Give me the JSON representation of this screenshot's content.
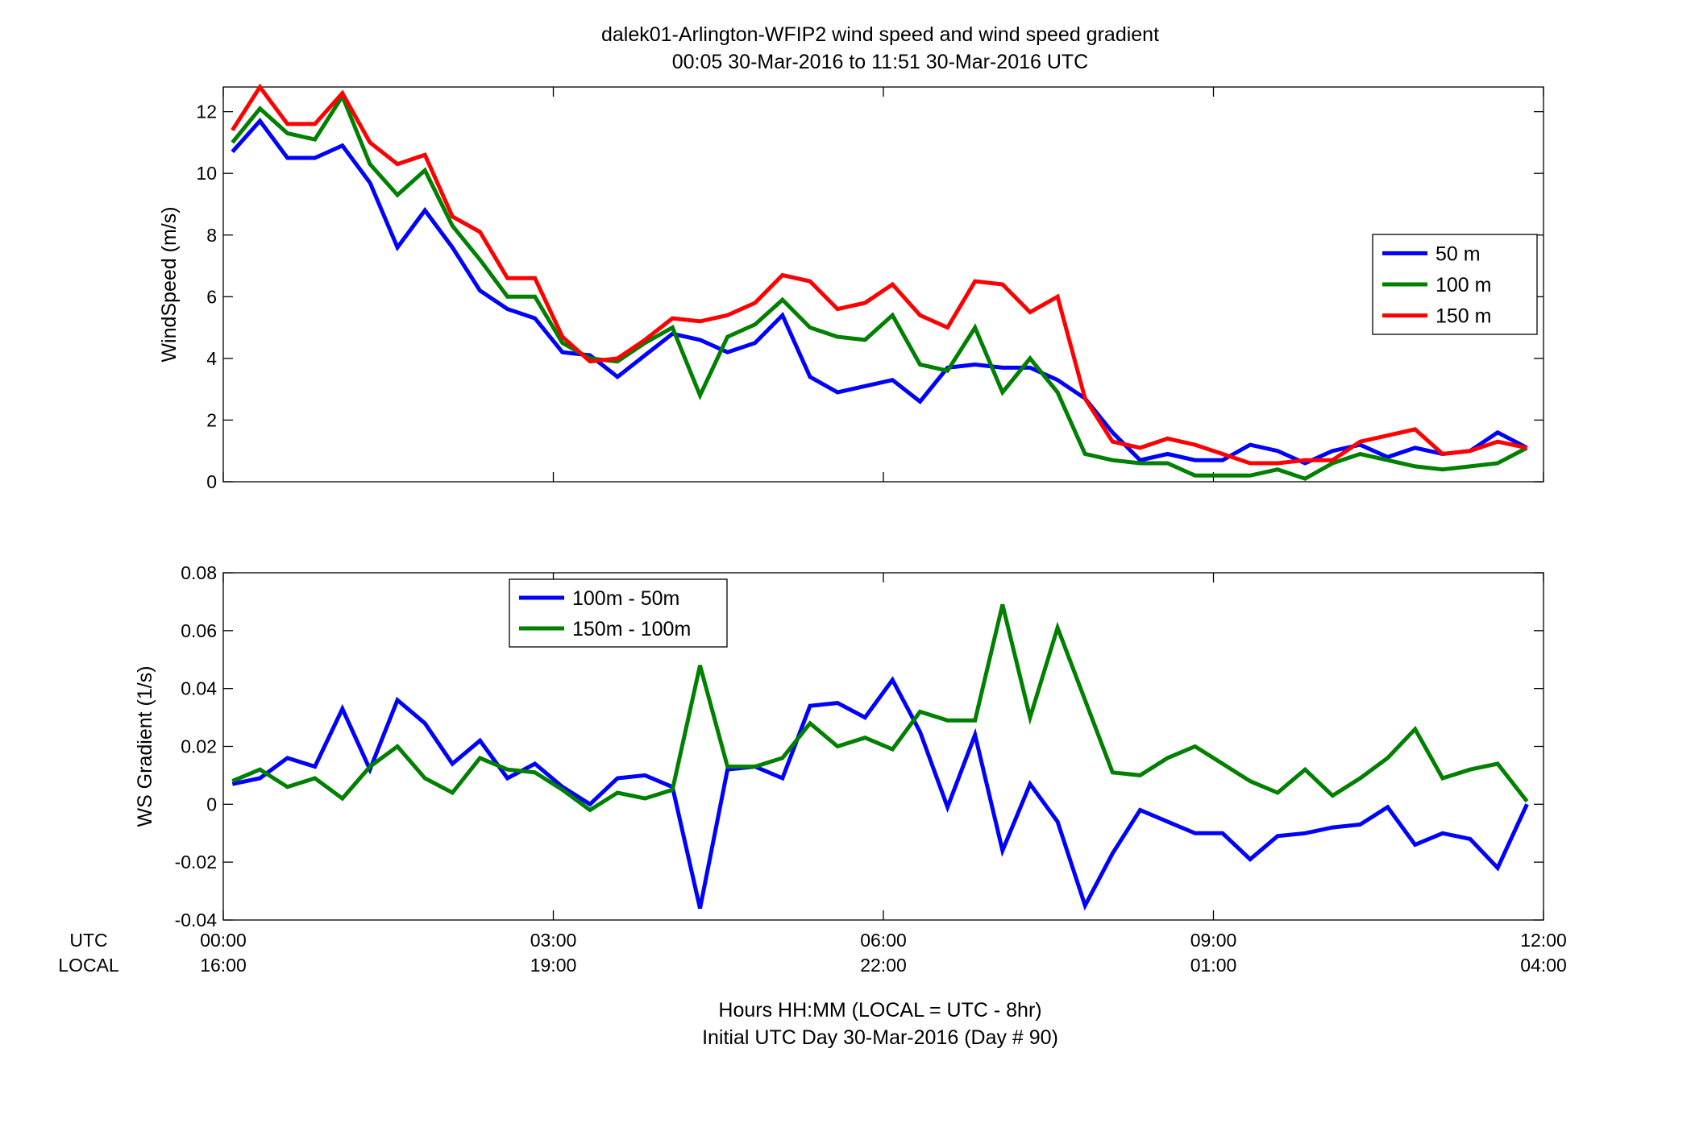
{
  "figure": {
    "title_line1": "dalek01-Arlington-WFIP2  wind speed and wind speed gradient",
    "title_line2": "00:05 30-Mar-2016 to 11:51 30-Mar-2016  UTC",
    "xlabel_line1": "Hours HH:MM  (LOCAL = UTC - 8hr)",
    "xlabel_line2": "Initial UTC Day 30-Mar-2016 (Day # 90)",
    "row_label_utc": "UTC",
    "row_label_local": "LOCAL"
  },
  "chart_data": [
    {
      "type": "line",
      "title": "",
      "xlabel": "",
      "ylabel": "WindSpeed (m/s)",
      "xlim_hours": [
        0,
        12
      ],
      "ylim": [
        0,
        12.8
      ],
      "yticks": [
        0,
        2,
        4,
        6,
        8,
        10,
        12
      ],
      "ytick_labels": [
        "0",
        "2",
        "4",
        "6",
        "8",
        "10",
        "12"
      ],
      "xticks_hours": [
        0,
        3,
        6,
        9,
        12
      ],
      "xtick_labels_utc": [
        "00:00",
        "03:00",
        "06:00",
        "09:00",
        "12:00"
      ],
      "xtick_labels_local": [
        "16:00",
        "19:00",
        "22:00",
        "01:00",
        "04:00"
      ],
      "grid": false,
      "legend_position": "right",
      "x_hours": [
        0.083,
        0.333,
        0.583,
        0.833,
        1.083,
        1.333,
        1.583,
        1.833,
        2.083,
        2.333,
        2.583,
        2.833,
        3.083,
        3.333,
        3.583,
        3.833,
        4.083,
        4.333,
        4.583,
        4.833,
        5.083,
        5.333,
        5.583,
        5.833,
        6.083,
        6.333,
        6.583,
        6.833,
        7.083,
        7.333,
        7.583,
        7.833,
        8.083,
        8.333,
        8.583,
        8.833,
        9.083,
        9.333,
        9.583,
        9.833,
        10.083,
        10.333,
        10.583,
        10.833,
        11.083,
        11.333,
        11.583,
        11.85
      ],
      "series": [
        {
          "name": "50 m",
          "color": "#0000ff",
          "values": [
            10.7,
            11.7,
            10.5,
            10.5,
            10.9,
            9.7,
            7.6,
            8.8,
            7.6,
            6.2,
            5.6,
            5.3,
            4.2,
            4.1,
            3.4,
            4.1,
            4.8,
            4.6,
            4.2,
            4.5,
            5.4,
            3.4,
            2.9,
            3.1,
            3.3,
            2.6,
            3.7,
            3.8,
            3.7,
            3.7,
            3.3,
            2.7,
            1.6,
            0.7,
            0.9,
            0.7,
            0.7,
            1.2,
            1.0,
            0.6,
            1.0,
            1.2,
            0.8,
            1.1,
            0.9,
            1.0,
            1.6,
            1.1
          ]
        },
        {
          "name": "100 m",
          "color": "#008000",
          "values": [
            11.0,
            12.1,
            11.3,
            11.1,
            12.5,
            10.3,
            9.3,
            10.1,
            8.3,
            7.2,
            6.0,
            6.0,
            4.5,
            4.0,
            3.9,
            4.5,
            5.0,
            2.8,
            4.7,
            5.1,
            5.9,
            5.0,
            4.7,
            4.6,
            5.4,
            3.8,
            3.6,
            5.0,
            2.9,
            4.0,
            2.9,
            0.9,
            0.7,
            0.6,
            0.6,
            0.2,
            0.2,
            0.2,
            0.4,
            0.1,
            0.6,
            0.9,
            0.7,
            0.5,
            0.4,
            0.5,
            0.6,
            1.1
          ]
        },
        {
          "name": "150 m",
          "color": "#ff0000",
          "values": [
            11.4,
            12.8,
            11.6,
            11.6,
            12.6,
            11.0,
            10.3,
            10.6,
            8.6,
            8.1,
            6.6,
            6.6,
            4.7,
            3.9,
            4.0,
            4.6,
            5.3,
            5.2,
            5.4,
            5.8,
            6.7,
            6.5,
            5.6,
            5.8,
            6.4,
            5.4,
            5.0,
            6.5,
            6.4,
            5.5,
            6.0,
            2.7,
            1.3,
            1.1,
            1.4,
            1.2,
            0.9,
            0.6,
            0.6,
            0.7,
            0.7,
            1.3,
            1.5,
            1.7,
            0.9,
            1.0,
            1.3,
            1.1
          ]
        }
      ]
    },
    {
      "type": "line",
      "title": "",
      "xlabel": "",
      "ylabel": "WS Gradient (1/s)",
      "xlim_hours": [
        0,
        12
      ],
      "ylim": [
        -0.04,
        0.08
      ],
      "yticks": [
        -0.04,
        -0.02,
        0,
        0.02,
        0.04,
        0.06,
        0.08
      ],
      "ytick_labels": [
        "-0.04",
        "-0.02",
        "0",
        "0.02",
        "0.04",
        "0.06",
        "0.08"
      ],
      "xticks_hours": [
        0,
        3,
        6,
        9,
        12
      ],
      "grid": false,
      "legend_position": "top-left",
      "x_hours": [
        0.083,
        0.333,
        0.583,
        0.833,
        1.083,
        1.333,
        1.583,
        1.833,
        2.083,
        2.333,
        2.583,
        2.833,
        3.083,
        3.333,
        3.583,
        3.833,
        4.083,
        4.333,
        4.583,
        4.833,
        5.083,
        5.333,
        5.583,
        5.833,
        6.083,
        6.333,
        6.583,
        6.833,
        7.083,
        7.333,
        7.583,
        7.833,
        8.083,
        8.333,
        8.583,
        8.833,
        9.083,
        9.333,
        9.583,
        9.833,
        10.083,
        10.333,
        10.583,
        10.833,
        11.083,
        11.333,
        11.583,
        11.85
      ],
      "series": [
        {
          "name": "100m - 50m",
          "color": "#0000ff",
          "values": [
            0.007,
            0.009,
            0.016,
            0.013,
            0.033,
            0.012,
            0.036,
            0.028,
            0.014,
            0.022,
            0.009,
            0.014,
            0.006,
            0.0,
            0.009,
            0.01,
            0.006,
            -0.036,
            0.012,
            0.013,
            0.009,
            0.034,
            0.035,
            0.03,
            0.043,
            0.025,
            -0.001,
            0.024,
            -0.016,
            0.007,
            -0.006,
            -0.035,
            -0.017,
            -0.002,
            -0.006,
            -0.01,
            -0.01,
            -0.019,
            -0.011,
            -0.01,
            -0.008,
            -0.007,
            -0.001,
            -0.014,
            -0.01,
            -0.012,
            -0.022,
            0.0
          ]
        },
        {
          "name": "150m - 100m",
          "color": "#008000",
          "values": [
            0.008,
            0.012,
            0.006,
            0.009,
            0.002,
            0.013,
            0.02,
            0.009,
            0.004,
            0.016,
            0.012,
            0.011,
            0.005,
            -0.002,
            0.004,
            0.002,
            0.005,
            0.048,
            0.013,
            0.013,
            0.016,
            0.028,
            0.02,
            0.023,
            0.019,
            0.032,
            0.029,
            0.029,
            0.069,
            0.03,
            0.061,
            0.036,
            0.011,
            0.01,
            0.016,
            0.02,
            0.014,
            0.008,
            0.004,
            0.012,
            0.003,
            0.009,
            0.016,
            0.026,
            0.009,
            0.012,
            0.014,
            0.001
          ]
        }
      ]
    }
  ]
}
